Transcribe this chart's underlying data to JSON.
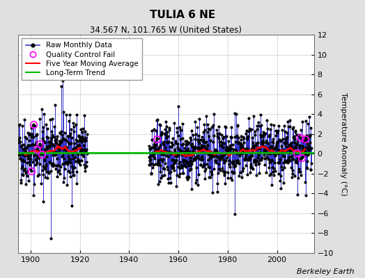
{
  "title": "TULIA 6 NE",
  "subtitle": "34.567 N, 101.765 W (United States)",
  "ylabel": "Temperature Anomaly (°C)",
  "credit": "Berkeley Earth",
  "ylim": [
    -10,
    12
  ],
  "yticks": [
    -10,
    -8,
    -6,
    -4,
    -2,
    0,
    2,
    4,
    6,
    8,
    10,
    12
  ],
  "xlim": [
    1895,
    2015
  ],
  "xticks": [
    1900,
    1920,
    1940,
    1960,
    1980,
    2000
  ],
  "early_start": 1895,
  "early_end": 1922,
  "late_start": 1948,
  "late_end": 2013,
  "seed": 42,
  "bg_color": "#e0e0e0",
  "plot_bg_color": "#ffffff",
  "raw_line_color": "#3333cc",
  "raw_dot_color": "#000000",
  "qc_fail_color": "#ff00ff",
  "moving_avg_color": "#ff0000",
  "trend_color": "#00bb00",
  "title_fontsize": 11,
  "subtitle_fontsize": 8.5,
  "label_fontsize": 8,
  "tick_fontsize": 8,
  "credit_fontsize": 8
}
